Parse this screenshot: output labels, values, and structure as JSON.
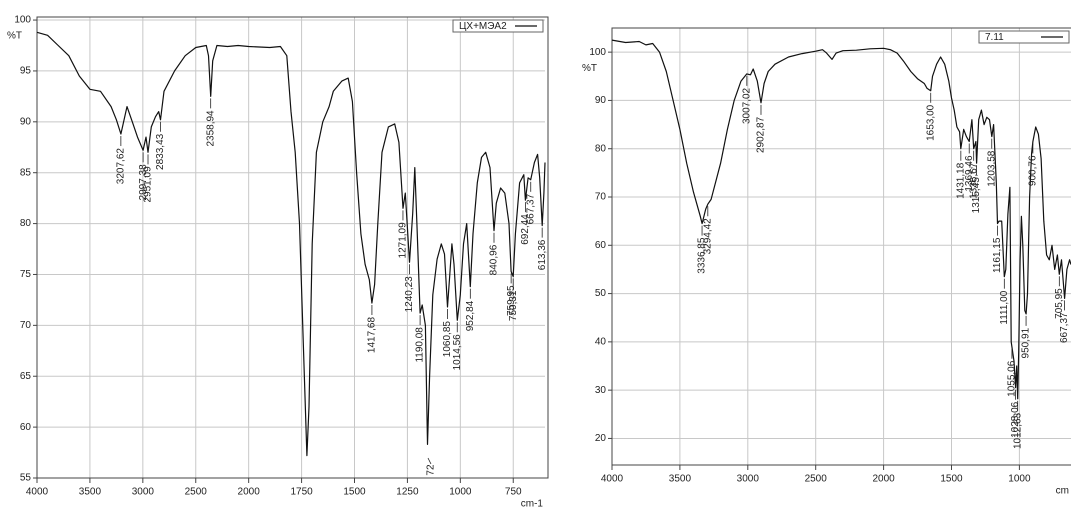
{
  "chart_data": [
    {
      "type": "line",
      "y_label": "%T",
      "x_label": "cm-1",
      "xlim": [
        4000,
        600
      ],
      "ylim": [
        55,
        100.3
      ],
      "xticks": [
        4000,
        3500,
        3000,
        2500,
        2000,
        1750,
        1500,
        1250,
        1000,
        750
      ],
      "yticks": [
        55,
        60,
        65,
        70,
        75,
        80,
        85,
        90,
        95,
        100
      ],
      "grid": true,
      "legend": "upper right",
      "x": [
        4000,
        3900,
        3800,
        3700,
        3600,
        3500,
        3400,
        3300,
        3250,
        3207.62,
        3150,
        3100,
        3050,
        2997.38,
        2970,
        2951.09,
        2920,
        2880,
        2850,
        2833.43,
        2800,
        2700,
        2600,
        2500,
        2400,
        2380,
        2358.94,
        2340,
        2300,
        2200,
        2100,
        2000,
        1900,
        1850,
        1820,
        1800,
        1780,
        1760,
        1740,
        1725,
        1715,
        1700,
        1680,
        1650,
        1620,
        1600,
        1560,
        1530,
        1510,
        1490,
        1470,
        1450,
        1430,
        1417.68,
        1405,
        1390,
        1370,
        1340,
        1310,
        1290,
        1271.09,
        1260,
        1240.23,
        1225,
        1215,
        1205,
        1190.08,
        1180,
        1165,
        1155,
        1145,
        1130,
        1110,
        1090,
        1075,
        1060.85,
        1050,
        1040,
        1030,
        1014.56,
        1000,
        985,
        970,
        952.84,
        940,
        920,
        900,
        880,
        860,
        840.96,
        830,
        810,
        790,
        770,
        759.95,
        750.31,
        740,
        720,
        700,
        692.44,
        680,
        667.37,
        650,
        635,
        625,
        613.36,
        605,
        600
      ],
      "series": [
        {
          "name": "ЦХ+МЭА2",
          "color": "#111111",
          "values": [
            98.8,
            98.5,
            97.5,
            96.5,
            94.5,
            93.2,
            93,
            91.5,
            90.2,
            88.8,
            91.5,
            90,
            88.5,
            87.2,
            88.5,
            87,
            89.5,
            90.5,
            91,
            90.2,
            93,
            95,
            96.5,
            97.3,
            97.5,
            96.5,
            92.5,
            96,
            97.5,
            97.4,
            97.5,
            97.4,
            97.3,
            97.4,
            96.5,
            91,
            87,
            80,
            67,
            57.2,
            62,
            78,
            87,
            90,
            91.5,
            93,
            94,
            94.3,
            92,
            85,
            79,
            76,
            74.5,
            72.2,
            74,
            80,
            87,
            89.5,
            89.8,
            88,
            81.5,
            83,
            76.2,
            81,
            85.5,
            80,
            71.2,
            72,
            70,
            58.3,
            65,
            73,
            76.5,
            78,
            77,
            71.8,
            75,
            78,
            76,
            70.5,
            73,
            78,
            80,
            73.8,
            79,
            84,
            86.5,
            87,
            85.5,
            79.3,
            82,
            83.5,
            83,
            80,
            75.3,
            74.8,
            79,
            84,
            84.8,
            82.3,
            84.5,
            84.3,
            86,
            86.8,
            84.5,
            79.8,
            83,
            86
          ]
        }
      ],
      "peaks": [
        {
          "x": 3207.62,
          "label": "3207,62"
        },
        {
          "x": 2997.38,
          "label": "2997,38"
        },
        {
          "x": 2951.09,
          "label": "2951,09"
        },
        {
          "x": 2833.43,
          "label": "2833,43"
        },
        {
          "x": 2358.94,
          "label": "2358,94"
        },
        {
          "x": 1417.68,
          "label": "1417,68"
        },
        {
          "x": 1271.09,
          "label": "1271,09"
        },
        {
          "x": 1240.23,
          "label": "1240,23"
        },
        {
          "x": 1190.08,
          "label": "1190,08"
        },
        {
          "x": 1060.85,
          "label": "1060,85"
        },
        {
          "x": 1014.56,
          "label": "1014,56"
        },
        {
          "x": 952.84,
          "label": "952,84"
        },
        {
          "x": 840.96,
          "label": "840,96"
        },
        {
          "x": 759.95,
          "label": "759,95"
        },
        {
          "x": 750.31,
          "label": "750,31"
        },
        {
          "x": 692.44,
          "label": "692,44"
        },
        {
          "x": 667.37,
          "label": "667,37"
        },
        {
          "x": 613.36,
          "label": "613,36"
        }
      ],
      "annotations": [
        "72"
      ]
    },
    {
      "type": "line",
      "y_label": "%T",
      "x_label": "cm",
      "xlim": [
        4000,
        620
      ],
      "ylim": [
        14.5,
        105
      ],
      "xticks": [
        4000,
        3500,
        3000,
        2500,
        2000,
        1500,
        1000
      ],
      "yticks": [
        20,
        30,
        40,
        50,
        60,
        70,
        80,
        90,
        100
      ],
      "grid": true,
      "legend": "upper right",
      "x": [
        4000,
        3900,
        3800,
        3750,
        3700,
        3650,
        3600,
        3550,
        3500,
        3450,
        3400,
        3350,
        3336.85,
        3310,
        3294.42,
        3270,
        3200,
        3150,
        3100,
        3050,
        3007.02,
        2980,
        2960,
        2930,
        2902.87,
        2880,
        2850,
        2800,
        2700,
        2600,
        2500,
        2450,
        2420,
        2380,
        2350,
        2300,
        2200,
        2100,
        2000,
        1950,
        1900,
        1850,
        1800,
        1750,
        1700,
        1680,
        1653,
        1640,
        1610,
        1580,
        1550,
        1520,
        1500,
        1480,
        1460,
        1440,
        1431.18,
        1410,
        1390,
        1369.46,
        1350,
        1336.67,
        1320,
        1315.45,
        1300,
        1280,
        1260,
        1240,
        1220,
        1203.58,
        1190,
        1170,
        1161.15,
        1150,
        1130,
        1111,
        1100,
        1085,
        1070,
        1060,
        1055.06,
        1040,
        1028.06,
        1020,
        1012.63,
        1005,
        995,
        985,
        975,
        960,
        950.91,
        940,
        925,
        910,
        900.76,
        880,
        860,
        840,
        820,
        800,
        780,
        760,
        740,
        720,
        705.95,
        690,
        667.37,
        650,
        630,
        620
      ],
      "series": [
        {
          "name": "7.11",
          "color": "#111111",
          "values": [
            102.5,
            102,
            102.2,
            101.5,
            101.8,
            100,
            96,
            90,
            84,
            77,
            71,
            66,
            64.5,
            67.5,
            68.5,
            69.5,
            77,
            84,
            90,
            94,
            95.5,
            95.3,
            96.5,
            94,
            89.5,
            93.5,
            96,
            97.5,
            99,
            99.7,
            100.2,
            100.5,
            99.8,
            98.5,
            99.8,
            100.3,
            100.4,
            100.7,
            100.8,
            100.5,
            99.8,
            98,
            96,
            94.5,
            93.5,
            92.5,
            92,
            95,
            97.5,
            99,
            97.5,
            94,
            90.5,
            88,
            84.5,
            83.5,
            80,
            84,
            82.5,
            81.5,
            86,
            80,
            81.5,
            77,
            86,
            88,
            85,
            86.5,
            86,
            82.5,
            85,
            73,
            64.5,
            65,
            65,
            53.5,
            55,
            66.5,
            72,
            40,
            39,
            36,
            30.5,
            35,
            28.2,
            38,
            57,
            66,
            60,
            46.5,
            45.8,
            50,
            70,
            79,
            81.5,
            84.5,
            83,
            78,
            65,
            58,
            57,
            60,
            55,
            58,
            54,
            57,
            49,
            55,
            57,
            56
          ]
        }
      ],
      "peaks": [
        {
          "x": 3336.85,
          "label": "3336,85"
        },
        {
          "x": 3294.42,
          "label": "3294,42"
        },
        {
          "x": 3007.02,
          "label": "3007,02"
        },
        {
          "x": 2902.87,
          "label": "2902,87"
        },
        {
          "x": 1653,
          "label": "1653,00"
        },
        {
          "x": 1431.18,
          "label": "1431,18"
        },
        {
          "x": 1369.46,
          "label": "1369,46"
        },
        {
          "x": 1336.67,
          "label": "1336,67"
        },
        {
          "x": 1315.45,
          "label": "1315,45"
        },
        {
          "x": 1203.58,
          "label": "1203,58"
        },
        {
          "x": 1161.15,
          "label": "1161,15"
        },
        {
          "x": 1111,
          "label": "1111,00"
        },
        {
          "x": 1055.06,
          "label": "1055,06"
        },
        {
          "x": 1028.06,
          "label": "1028,06"
        },
        {
          "x": 1012.63,
          "label": "1012,63"
        },
        {
          "x": 950.91,
          "label": "950,91"
        },
        {
          "x": 900.76,
          "label": "900,76"
        },
        {
          "x": 705.95,
          "label": "705,95"
        },
        {
          "x": 667.37,
          "label": "667,37"
        }
      ]
    }
  ]
}
